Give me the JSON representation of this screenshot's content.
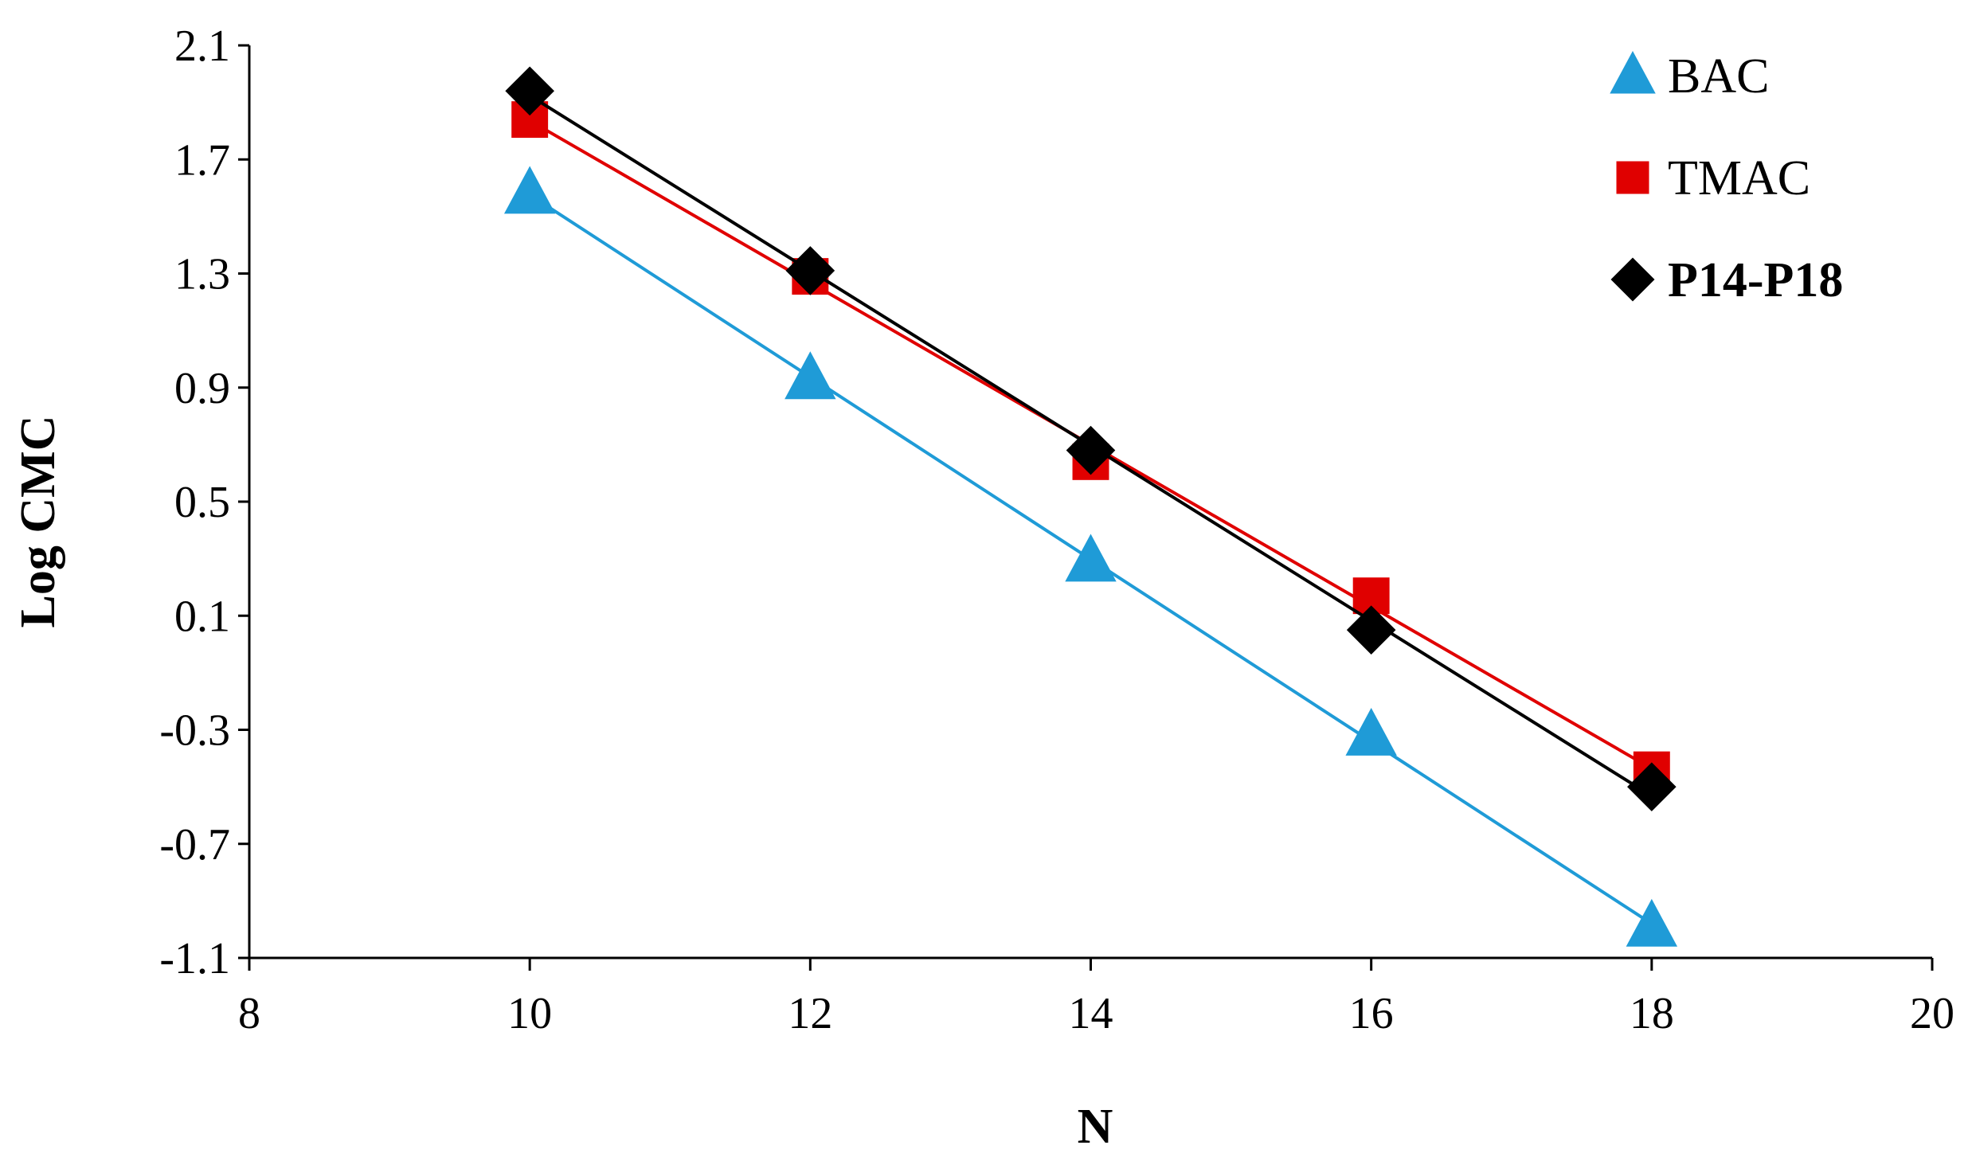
{
  "chart_data": {
    "type": "line",
    "title": "",
    "xlabel": "N",
    "ylabel": "Log CMC",
    "xlim": [
      8,
      20
    ],
    "ylim": [
      -1.1,
      2.1
    ],
    "xticks": [
      8,
      10,
      12,
      14,
      16,
      18,
      20
    ],
    "yticks": [
      -1.1,
      -0.7,
      -0.3,
      0.1,
      0.5,
      0.9,
      1.3,
      1.7,
      2.1
    ],
    "xtick_labels": [
      "8",
      "10",
      "12",
      "14",
      "16",
      "18",
      "20"
    ],
    "ytick_labels": [
      "-1.1",
      "-0.7",
      "-0.3",
      "0.1",
      "0.5",
      "0.9",
      "1.3",
      "1.7",
      "2.1"
    ],
    "grid": false,
    "legend_position": "top-right",
    "x": [
      10,
      12,
      14,
      16,
      18
    ],
    "series": [
      {
        "name": "BAC",
        "values": [
          1.58,
          0.93,
          0.29,
          -0.32,
          -0.99
        ],
        "color": "#1f9bd7",
        "marker": "triangle"
      },
      {
        "name": "TMAC",
        "values": [
          1.84,
          1.29,
          0.64,
          0.17,
          -0.44
        ],
        "color": "#e00000",
        "marker": "square"
      },
      {
        "name": "P14-P18",
        "values": [
          1.94,
          1.31,
          0.68,
          0.05,
          -0.5
        ],
        "color": "#000000",
        "marker": "diamond",
        "bold_label": true
      }
    ]
  }
}
